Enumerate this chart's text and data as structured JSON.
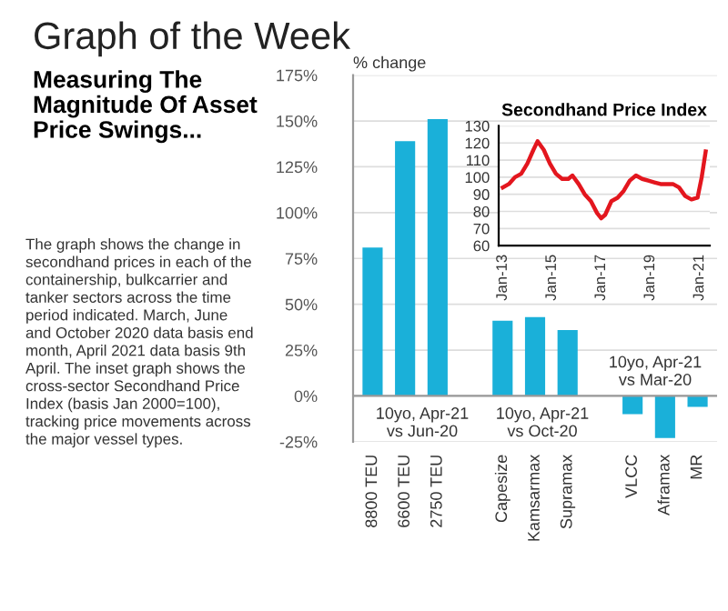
{
  "chart_data": [
    {
      "type": "bar",
      "title": "Graph of the Week",
      "subtitle": "Measuring The\nMagnitude Of Asset\nPrice Swings...",
      "ylabel": "% change",
      "categories": [
        "8800 TEU",
        "6600 TEU",
        "2750 TEU",
        null,
        "Capesize",
        "Kamsarmax",
        "Supramax",
        null,
        "VLCC",
        "Aframax",
        "MR"
      ],
      "values": [
        81,
        139,
        151,
        null,
        41,
        43,
        36,
        null,
        -10,
        -23,
        -6
      ],
      "color": "#1ab0d9",
      "ylim": [
        -25,
        175
      ],
      "yticks": [
        {
          "value": -25,
          "label": "-25%"
        },
        {
          "value": 0,
          "label": "0%"
        },
        {
          "value": 25,
          "label": "25%"
        },
        {
          "value": 50,
          "label": "50%"
        },
        {
          "value": 75,
          "label": "75%"
        },
        {
          "value": 100,
          "label": "100%"
        },
        {
          "value": 125,
          "label": "125%"
        },
        {
          "value": 150,
          "label": "150%"
        },
        {
          "value": 175,
          "label": "175%"
        }
      ],
      "grid": "y",
      "annotations": [
        "10yo, Apr-21\nvs Jun-20",
        "10yo, Apr-21\nvs Oct-20",
        "10yo, Apr-21\nvs Mar-20",
        "The graph shows the change in\nsecondhand prices in each of the\ncontainership, bulkcarrier and\ntanker sectors across the time\nperiod indicated. March, June\nand October 2020 data basis end\nmonth, April 2021 data basis 9th\nApril. The inset graph shows the\ncross-sector Secondhand Price\nIndex (basis Jan 2000=100),\ntracking price movements across\nthe major vessel types."
      ]
    },
    {
      "type": "line",
      "title": "Secondhand Price Index",
      "x": [
        "2013-01",
        "2013-04",
        "2013-07",
        "2013-10",
        "2014-01",
        "2014-04",
        "2014-06",
        "2014-09",
        "2014-12",
        "2015-03",
        "2015-06",
        "2015-09",
        "2015-11",
        "2016-02",
        "2016-05",
        "2016-08",
        "2016-11",
        "2017-01",
        "2017-03",
        "2017-06",
        "2017-09",
        "2017-12",
        "2018-03",
        "2018-06",
        "2018-09",
        "2018-12",
        "2019-03",
        "2019-06",
        "2019-09",
        "2019-12",
        "2020-03",
        "2020-06",
        "2020-09",
        "2020-12",
        "2021-02",
        "2021-04"
      ],
      "values": [
        94,
        96,
        100,
        102,
        108,
        116,
        121,
        116,
        108,
        102,
        99,
        99,
        101,
        96,
        90,
        86,
        79,
        76,
        78,
        86,
        88,
        92,
        98,
        101,
        99,
        98,
        97,
        96,
        96,
        96,
        94,
        89,
        87,
        88,
        100,
        115
      ],
      "color": "#e3161e",
      "xlim": [
        "2012-11",
        "2021-06"
      ],
      "xticks": [
        {
          "value": "2013-01",
          "label": "Jan-13"
        },
        {
          "value": "2015-01",
          "label": "Jan-15"
        },
        {
          "value": "2017-01",
          "label": "Jan-17"
        },
        {
          "value": "2019-01",
          "label": "Jan-19"
        },
        {
          "value": "2021-01",
          "label": "Jan-21"
        }
      ],
      "ylim": [
        60,
        130
      ],
      "yticks": [
        60,
        70,
        80,
        90,
        100,
        110,
        120,
        130
      ],
      "grid": "y"
    }
  ]
}
